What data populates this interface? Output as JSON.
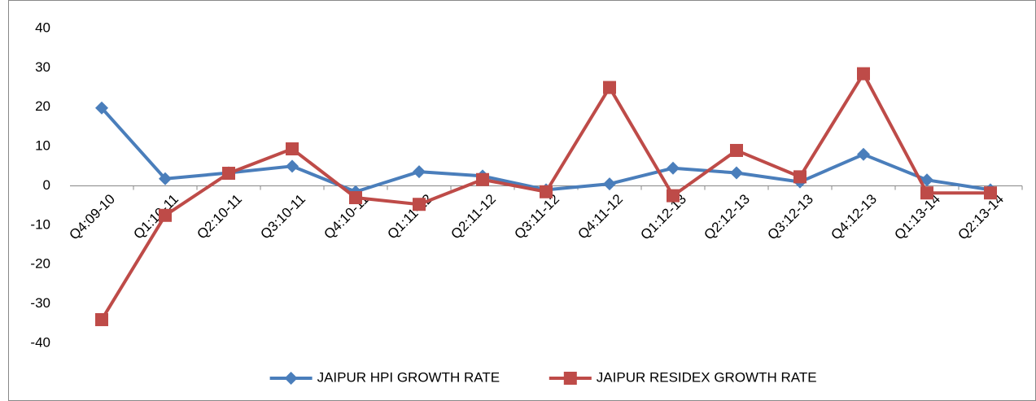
{
  "chart_data": {
    "type": "line",
    "categories": [
      "Q4:09-10",
      "Q1:10-11",
      "Q2:10-11",
      "Q3:10-11",
      "Q4:10-11",
      "Q1:11-12",
      "Q2:11-12",
      "Q3:11-12",
      "Q4:11-12",
      "Q1:12-13",
      "Q2:12-13",
      "Q3:12-13",
      "Q4:12-13",
      "Q1:13-14",
      "Q2:13-14"
    ],
    "series": [
      {
        "name": "JAIPUR HPI GROWTH RATE",
        "color": "#4a7ebb",
        "marker": "diamond",
        "values": [
          19.8,
          1.8,
          3.3,
          5,
          -1.5,
          3.6,
          2.5,
          -1,
          0.5,
          4.5,
          3.3,
          1,
          8,
          1.5,
          -1
        ]
      },
      {
        "name": "JAIPUR RESIDEX GROWTH RATE",
        "color": "#be4b48",
        "marker": "square",
        "values": [
          -34,
          -7.5,
          3.2,
          9.4,
          -3,
          -4.7,
          1.6,
          -1.5,
          25,
          -2.5,
          9,
          2.3,
          28.5,
          -1.8,
          -1.8
        ]
      }
    ],
    "ylim": [
      -40,
      40
    ],
    "yticks": [
      -40,
      -30,
      -20,
      -10,
      0,
      10,
      20,
      30,
      40
    ],
    "grid": false,
    "legend": "bottom"
  }
}
